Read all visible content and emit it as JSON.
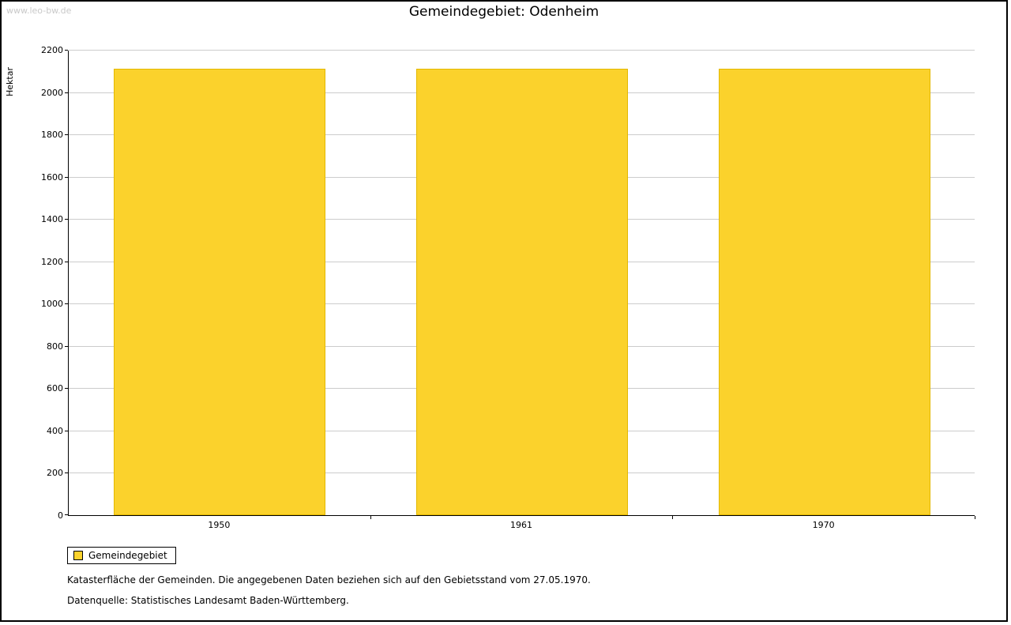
{
  "page": {
    "watermark": "www.leo-bw.de",
    "title": "Gemeindegebiet: Odenheim",
    "footnote1": "Katasterfläche der Gemeinden. Die angegebenen Daten beziehen sich auf den Gebietsstand vom 27.05.1970.",
    "footnote2": "Datenquelle: Statistisches Landesamt Baden-Württemberg."
  },
  "legend": {
    "label": "Gemeindegebiet",
    "swatch_color": "#fbd22c"
  },
  "chart_data": {
    "type": "bar",
    "title": "Gemeindegebiet: Odenheim",
    "categories": [
      "1950",
      "1961",
      "1970"
    ],
    "series": [
      {
        "name": "Gemeindegebiet",
        "values": [
          2110,
          2110,
          2110
        ]
      }
    ],
    "xlabel": "",
    "ylabel": "Hektar",
    "ylim": [
      0,
      2200
    ],
    "ytick_step": 200,
    "grid": true,
    "legend_position": "bottom-left",
    "bar_color": "#fbd22c",
    "bar_border_color": "#e3b800",
    "gridline_color": "#cccccc"
  }
}
